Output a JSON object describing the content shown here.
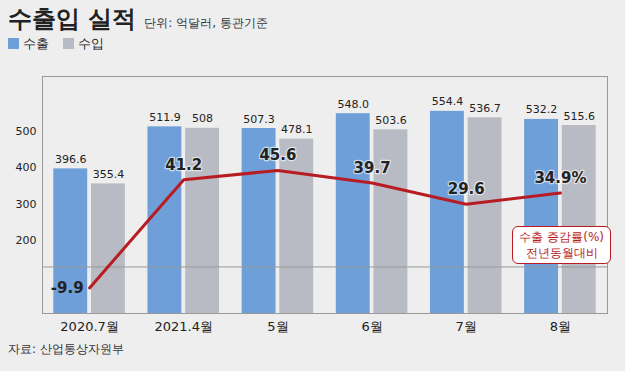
{
  "chart_data": {
    "type": "bar",
    "title": "수출입 실적",
    "subtitle": "단위: 억달러, 통관기준",
    "source": "자료: 산업통상자원부",
    "categories": [
      "2020.7월",
      "2021.4월",
      "5월",
      "6월",
      "7월",
      "8월"
    ],
    "series": [
      {
        "name": "수출",
        "type": "bar",
        "color": "#6f9fd8",
        "values": [
          396.6,
          511.9,
          507.3,
          548.0,
          554.4,
          532.2
        ],
        "value_labels": [
          "396.6",
          "511.9",
          "507.3",
          "548.0",
          "554.4",
          "532.2"
        ]
      },
      {
        "name": "수입",
        "type": "bar",
        "color": "#b8bbc3",
        "values": [
          355.4,
          508,
          478.1,
          503.6,
          536.7,
          515.6
        ],
        "value_labels": [
          "355.4",
          "508",
          "478.1",
          "503.6",
          "536.7",
          "515.6"
        ]
      },
      {
        "name": "수출 증감률(%)",
        "type": "line",
        "axis": "y2",
        "color": "#b81c22",
        "marker": "none",
        "annotation": "전년동월대비",
        "values": [
          -9.9,
          41.2,
          45.6,
          39.7,
          29.6,
          34.9
        ],
        "value_labels": [
          "-9.9",
          "41.2",
          "45.6",
          "39.7",
          "29.6",
          "34.9%"
        ]
      }
    ],
    "ylim": [
      0,
      650
    ],
    "yticks": [
      200,
      300,
      400,
      500
    ],
    "y2lim": [
      -22,
      90
    ],
    "y2ticks": [],
    "tick_labels": "y",
    "grid": false,
    "legend": "top-left",
    "data_labels": true
  }
}
